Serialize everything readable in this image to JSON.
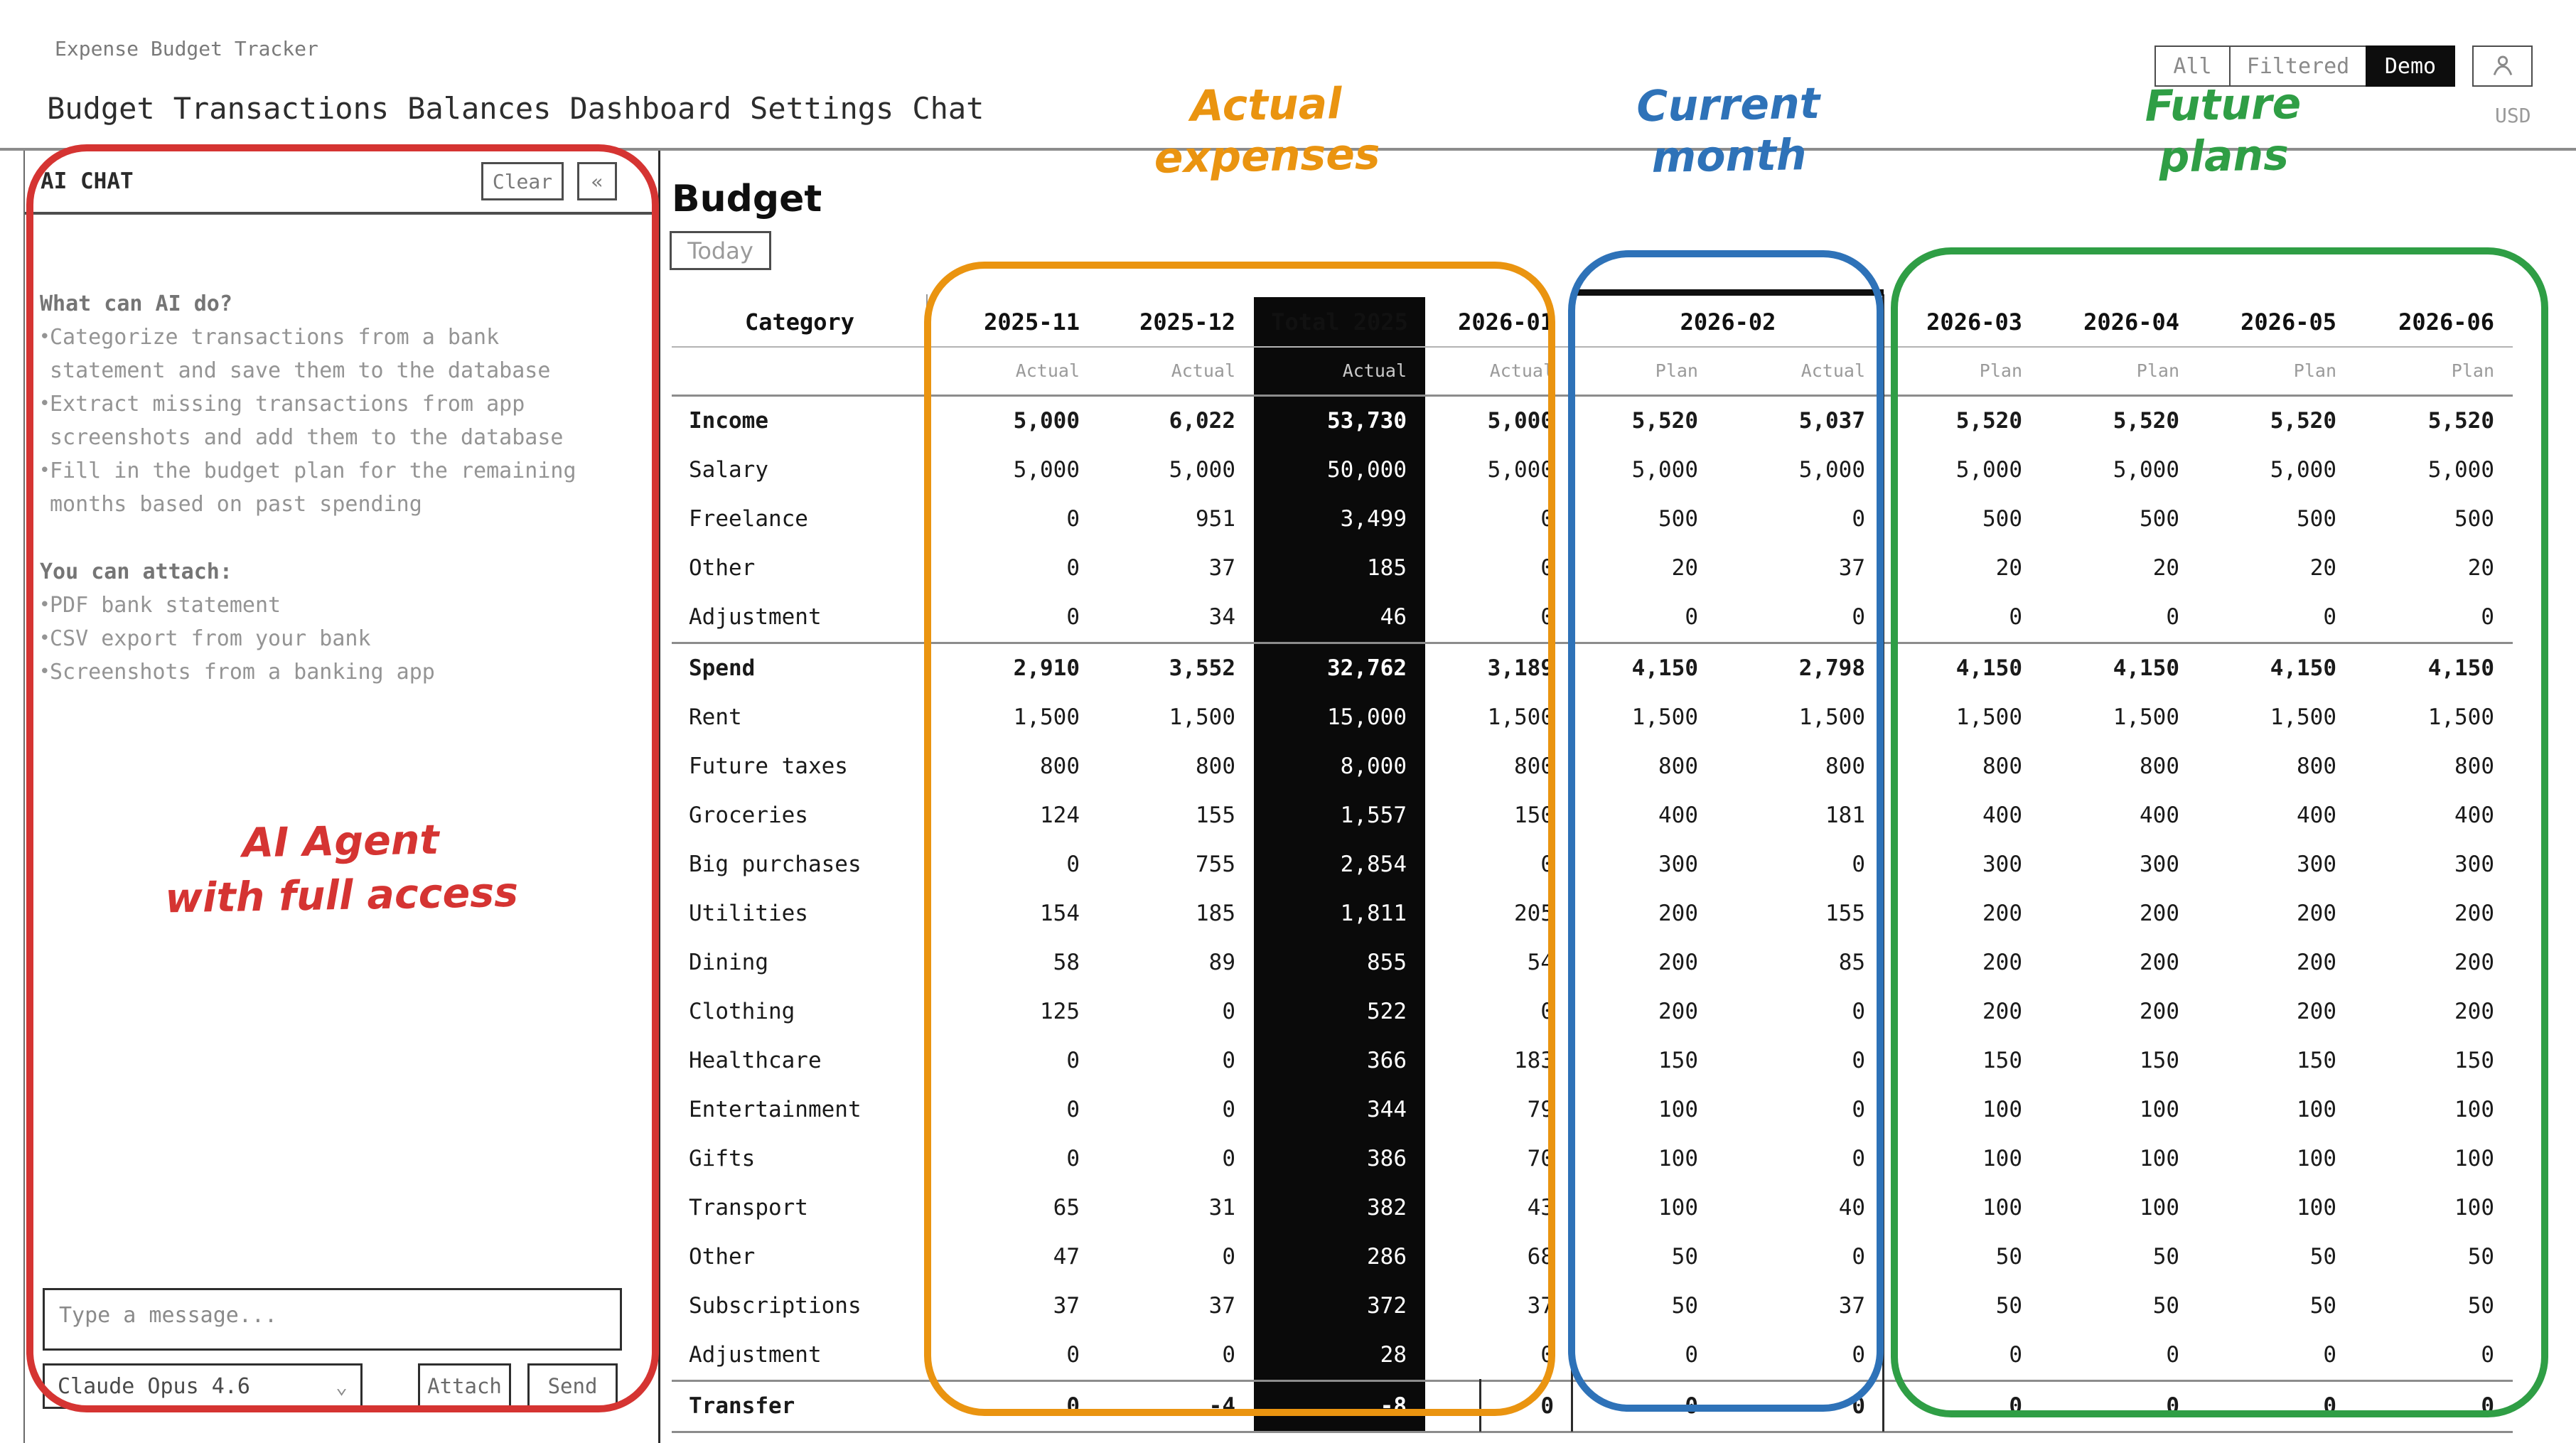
{
  "header": {
    "app_title": "Expense Budget Tracker",
    "nav": [
      "Budget",
      "Transactions",
      "Balances",
      "Dashboard",
      "Settings",
      "Chat"
    ],
    "scope_toggle": [
      "All",
      "Filtered",
      "Demo"
    ],
    "scope_active": "Demo",
    "currency": "USD"
  },
  "chat": {
    "title": "AI CHAT",
    "clear_label": "Clear",
    "collapse_label": "«",
    "help": {
      "capabilities_title": "What can AI do?",
      "capabilities": [
        "Categorize transactions from a bank statement and save them to the database",
        "Extract missing transactions from app screenshots and add them to the database",
        "Fill in the budget plan for the remaining months based on past spending"
      ],
      "attach_title": "You can attach:",
      "attachments": [
        "PDF bank statement",
        "CSV export from your bank",
        "Screenshots from a banking app"
      ]
    },
    "message_placeholder": "Type a message...",
    "model": "Claude Opus 4.6",
    "attach_label": "Attach",
    "send_label": "Send"
  },
  "main": {
    "title": "Budget",
    "today_label": "Today",
    "table": {
      "category_header": "Category",
      "columns": [
        {
          "label": "2025-11",
          "subs": [
            "Actual"
          ]
        },
        {
          "label": "2025-12",
          "subs": [
            "Actual"
          ]
        },
        {
          "label": "Total 2025",
          "subs": [
            "Actual"
          ],
          "dark": true
        },
        {
          "label": "2026-01",
          "subs": [
            "Actual"
          ]
        },
        {
          "label": "2026-02",
          "subs": [
            "Plan",
            "Actual"
          ],
          "current": true
        },
        {
          "label": "2026-03",
          "subs": [
            "Plan"
          ]
        },
        {
          "label": "2026-04",
          "subs": [
            "Plan"
          ]
        },
        {
          "label": "2026-05",
          "subs": [
            "Plan"
          ]
        },
        {
          "label": "2026-06",
          "subs": [
            "Plan"
          ]
        }
      ],
      "rows": [
        {
          "category": "Income",
          "bold": true,
          "values": [
            "5,000",
            "6,022",
            "53,730",
            "5,000",
            "5,520",
            "5,037",
            "5,520",
            "5,520",
            "5,520",
            "5,520"
          ]
        },
        {
          "category": "Salary",
          "values": [
            "5,000",
            "5,000",
            "50,000",
            "5,000",
            "5,000",
            "5,000",
            "5,000",
            "5,000",
            "5,000",
            "5,000"
          ]
        },
        {
          "category": "Freelance",
          "values": [
            "0",
            "951",
            "3,499",
            "0",
            "500",
            "0",
            "500",
            "500",
            "500",
            "500"
          ]
        },
        {
          "category": "Other",
          "values": [
            "0",
            "37",
            "185",
            "0",
            "20",
            "37",
            "20",
            "20",
            "20",
            "20"
          ]
        },
        {
          "category": "Adjustment",
          "values": [
            "0",
            "34",
            "46",
            "0",
            "0",
            "0",
            "0",
            "0",
            "0",
            "0"
          ]
        },
        {
          "category": "Spend",
          "bold": true,
          "section_start": true,
          "values": [
            "2,910",
            "3,552",
            "32,762",
            "3,189",
            "4,150",
            "2,798",
            "4,150",
            "4,150",
            "4,150",
            "4,150"
          ]
        },
        {
          "category": "Rent",
          "values": [
            "1,500",
            "1,500",
            "15,000",
            "1,500",
            "1,500",
            "1,500",
            "1,500",
            "1,500",
            "1,500",
            "1,500"
          ]
        },
        {
          "category": "Future taxes",
          "values": [
            "800",
            "800",
            "8,000",
            "800",
            "800",
            "800",
            "800",
            "800",
            "800",
            "800"
          ]
        },
        {
          "category": "Groceries",
          "values": [
            "124",
            "155",
            "1,557",
            "150",
            "400",
            "181",
            "400",
            "400",
            "400",
            "400"
          ]
        },
        {
          "category": "Big purchases",
          "values": [
            "0",
            "755",
            "2,854",
            "0",
            "300",
            "0",
            "300",
            "300",
            "300",
            "300"
          ]
        },
        {
          "category": "Utilities",
          "values": [
            "154",
            "185",
            "1,811",
            "205",
            "200",
            "155",
            "200",
            "200",
            "200",
            "200"
          ]
        },
        {
          "category": "Dining",
          "values": [
            "58",
            "89",
            "855",
            "54",
            "200",
            "85",
            "200",
            "200",
            "200",
            "200"
          ]
        },
        {
          "category": "Clothing",
          "values": [
            "125",
            "0",
            "522",
            "0",
            "200",
            "0",
            "200",
            "200",
            "200",
            "200"
          ]
        },
        {
          "category": "Healthcare",
          "values": [
            "0",
            "0",
            "366",
            "183",
            "150",
            "0",
            "150",
            "150",
            "150",
            "150"
          ]
        },
        {
          "category": "Entertainment",
          "values": [
            "0",
            "0",
            "344",
            "79",
            "100",
            "0",
            "100",
            "100",
            "100",
            "100"
          ]
        },
        {
          "category": "Gifts",
          "values": [
            "0",
            "0",
            "386",
            "70",
            "100",
            "0",
            "100",
            "100",
            "100",
            "100"
          ]
        },
        {
          "category": "Transport",
          "values": [
            "65",
            "31",
            "382",
            "43",
            "100",
            "40",
            "100",
            "100",
            "100",
            "100"
          ]
        },
        {
          "category": "Other",
          "values": [
            "47",
            "0",
            "286",
            "68",
            "50",
            "0",
            "50",
            "50",
            "50",
            "50"
          ]
        },
        {
          "category": "Subscriptions",
          "values": [
            "37",
            "37",
            "372",
            "37",
            "50",
            "37",
            "50",
            "50",
            "50",
            "50"
          ]
        },
        {
          "category": "Adjustment",
          "values": [
            "0",
            "0",
            "28",
            "0",
            "0",
            "0",
            "0",
            "0",
            "0",
            "0"
          ]
        },
        {
          "category": "Transfer",
          "bold": true,
          "section_start": true,
          "values": [
            "0",
            "-4",
            "-8",
            "0",
            "0",
            "0",
            "0",
            "0",
            "0",
            "0"
          ]
        }
      ]
    }
  },
  "annotations": {
    "agent": {
      "lines": [
        "AI Agent",
        "with full access"
      ],
      "color": "#d53432"
    },
    "actual_expenses": {
      "lines": [
        "Actual",
        "expenses"
      ],
      "color": "#ea9410"
    },
    "current_month": {
      "lines": [
        "Current",
        "month"
      ],
      "color": "#2e72b8"
    },
    "future_plans": {
      "lines": [
        "Future",
        "plans"
      ],
      "color": "#2f9e45"
    }
  }
}
